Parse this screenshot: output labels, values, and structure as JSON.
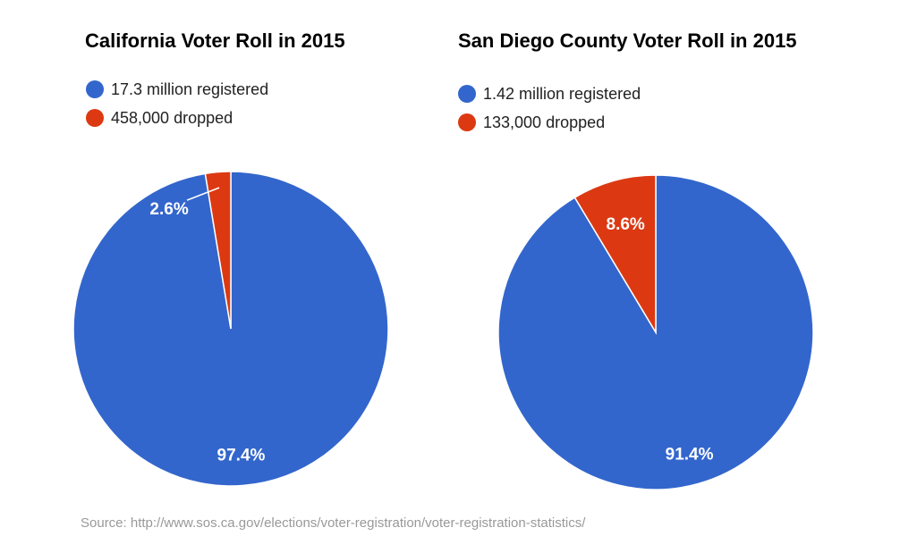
{
  "chart_data": [
    {
      "type": "pie",
      "title": "California Voter Roll in 2015",
      "legend_position": "top",
      "slices": [
        {
          "name": "17.3 million registered",
          "value": 97.4,
          "label": "97.4%",
          "color": "#3366cc"
        },
        {
          "name": "458,000 dropped",
          "value": 2.6,
          "label": "2.6%",
          "color": "#dc3912"
        }
      ]
    },
    {
      "type": "pie",
      "title": "San Diego County Voter Roll in 2015",
      "legend_position": "top",
      "slices": [
        {
          "name": "1.42 million registered",
          "value": 91.4,
          "label": "91.4%",
          "color": "#3366cc"
        },
        {
          "name": "133,000 dropped",
          "value": 8.6,
          "label": "8.6%",
          "color": "#dc3912"
        }
      ]
    }
  ],
  "source": "Source: http://www.sos.ca.gov/elections/voter-registration/voter-registration-statistics/"
}
